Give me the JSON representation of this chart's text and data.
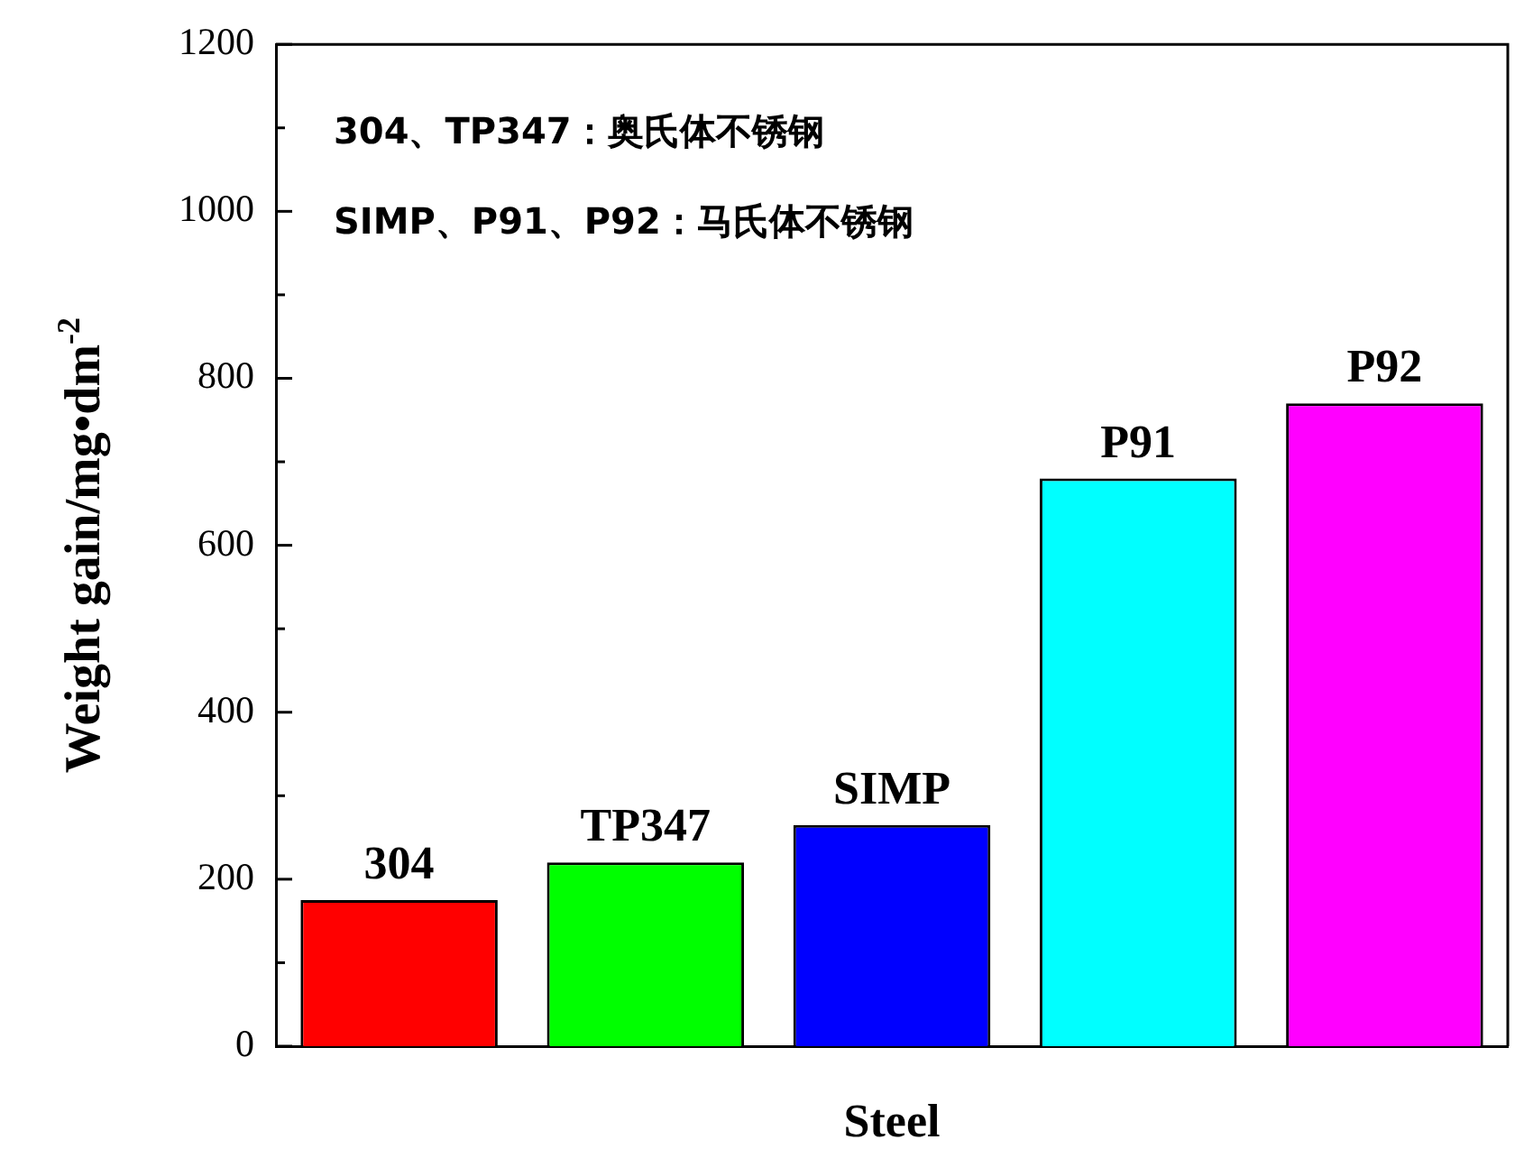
{
  "chart_data": {
    "type": "bar",
    "xlabel": "Steel",
    "ylabel": "Weight gain/mg•dm$^{-2}$",
    "categories": [
      "304",
      "TP347",
      "SIMP",
      "P91",
      "P92"
    ],
    "values": [
      175,
      220,
      265,
      680,
      770
    ],
    "colors": [
      "#ff0000",
      "#00ff00",
      "#0000ff",
      "#00ffff",
      "#ff00ff"
    ],
    "ylim": [
      0,
      1200
    ],
    "yticks": [
      0,
      {
        "value": 100,
        "label": null
      },
      200,
      {
        "value": 300,
        "label": null
      },
      400,
      {
        "value": 500,
        "label": null
      },
      600,
      {
        "value": 700,
        "label": null
      },
      800,
      {
        "value": 900,
        "label": null
      },
      1000,
      {
        "value": 1100,
        "label": null
      },
      1200
    ],
    "tick_labels": "y",
    "annotations": [
      "304、TP347：奥氏体不锈钢",
      "SIMP、P91、P92：马氏体不锈钢"
    ]
  }
}
